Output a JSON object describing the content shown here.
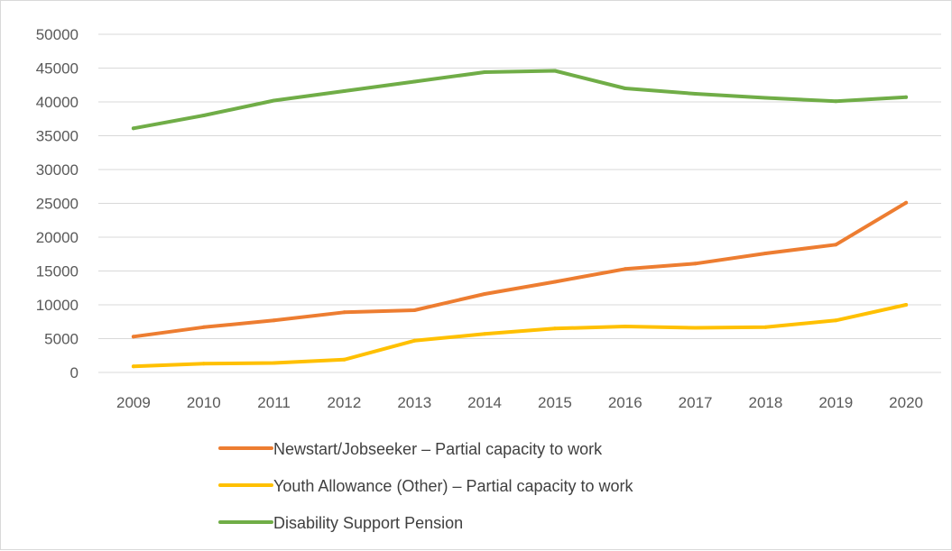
{
  "chart_data": {
    "type": "line",
    "title": "",
    "xlabel": "",
    "ylabel": "",
    "x": [
      "2009",
      "2010",
      "2011",
      "2012",
      "2013",
      "2014",
      "2015",
      "2016",
      "2017",
      "2018",
      "2019",
      "2020"
    ],
    "ylim": [
      0,
      50000
    ],
    "yticks": [
      0,
      5000,
      10000,
      15000,
      20000,
      25000,
      30000,
      35000,
      40000,
      45000,
      50000
    ],
    "grid": true,
    "legend_position": "bottom",
    "series": [
      {
        "name": "Newstart/Jobseeker – Partial capacity to work",
        "color": "#ed7d31",
        "values": [
          5300,
          6700,
          7700,
          8900,
          9200,
          11600,
          13400,
          15300,
          16100,
          17600,
          18900,
          25100
        ]
      },
      {
        "name": "Youth Allowance (Other) – Partial capacity to work",
        "color": "#ffc000",
        "values": [
          900,
          1300,
          1400,
          1900,
          4700,
          5700,
          6500,
          6800,
          6600,
          6700,
          7700,
          10000
        ]
      },
      {
        "name": "Disability Support Pension",
        "color": "#70ad47",
        "values": [
          36100,
          38000,
          40200,
          41600,
          43000,
          44400,
          44600,
          42000,
          41200,
          40600,
          40100,
          40700
        ]
      }
    ]
  }
}
